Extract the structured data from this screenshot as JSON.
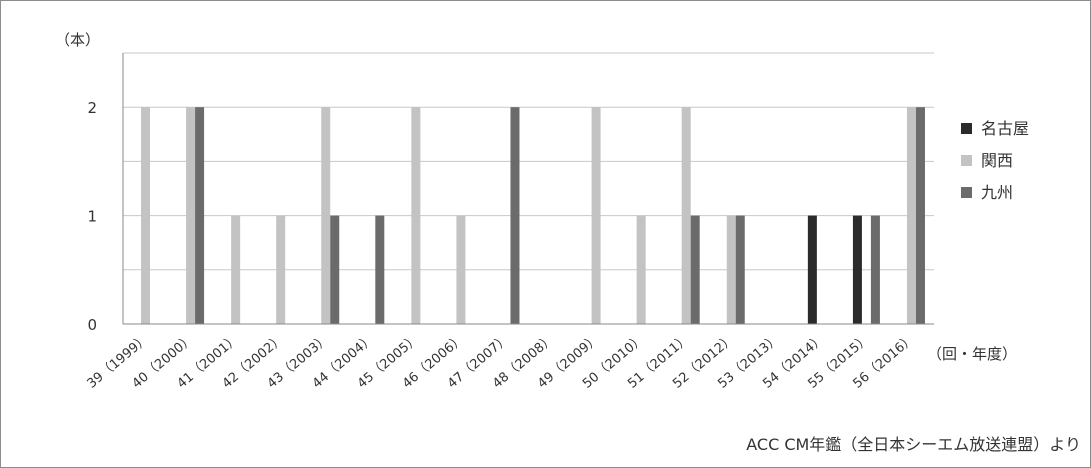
{
  "chart_data": {
    "type": "bar",
    "y_unit_label": "（本）",
    "x_unit_label": "（回・年度）",
    "source_note": "ACC CM年鑑（全日本シーエム放送連盟）より",
    "ylim": [
      0,
      2.5
    ],
    "yticks": [
      0,
      1,
      2
    ],
    "grid": true,
    "legend_position": "right",
    "categories": [
      "39（1999）",
      "40（2000）",
      "41（2001）",
      "42（2002）",
      "43（2003）",
      "44（2004）",
      "45（2005）",
      "46（2006）",
      "47（2007）",
      "48（2008）",
      "49（2009）",
      "50（2010）",
      "51（2011）",
      "52（2012）",
      "53（2013）",
      "54（2014）",
      "55（2015）",
      "56（2016）"
    ],
    "series": [
      {
        "name": "名古屋",
        "color": "#2b2b2b",
        "values": [
          0,
          0,
          0,
          0,
          0,
          0,
          0,
          0,
          0,
          0,
          0,
          0,
          0,
          0,
          0,
          1,
          1,
          0
        ]
      },
      {
        "name": "関西",
        "color": "#c3c3c3",
        "values": [
          2,
          2,
          1,
          1,
          2,
          0,
          2,
          1,
          0,
          0,
          2,
          1,
          2,
          1,
          0,
          0,
          0,
          2
        ]
      },
      {
        "name": "九州",
        "color": "#6b6b6b",
        "values": [
          0,
          2,
          0,
          0,
          1,
          1,
          0,
          0,
          2,
          0,
          0,
          0,
          1,
          1,
          0,
          0,
          1,
          2
        ]
      }
    ]
  }
}
